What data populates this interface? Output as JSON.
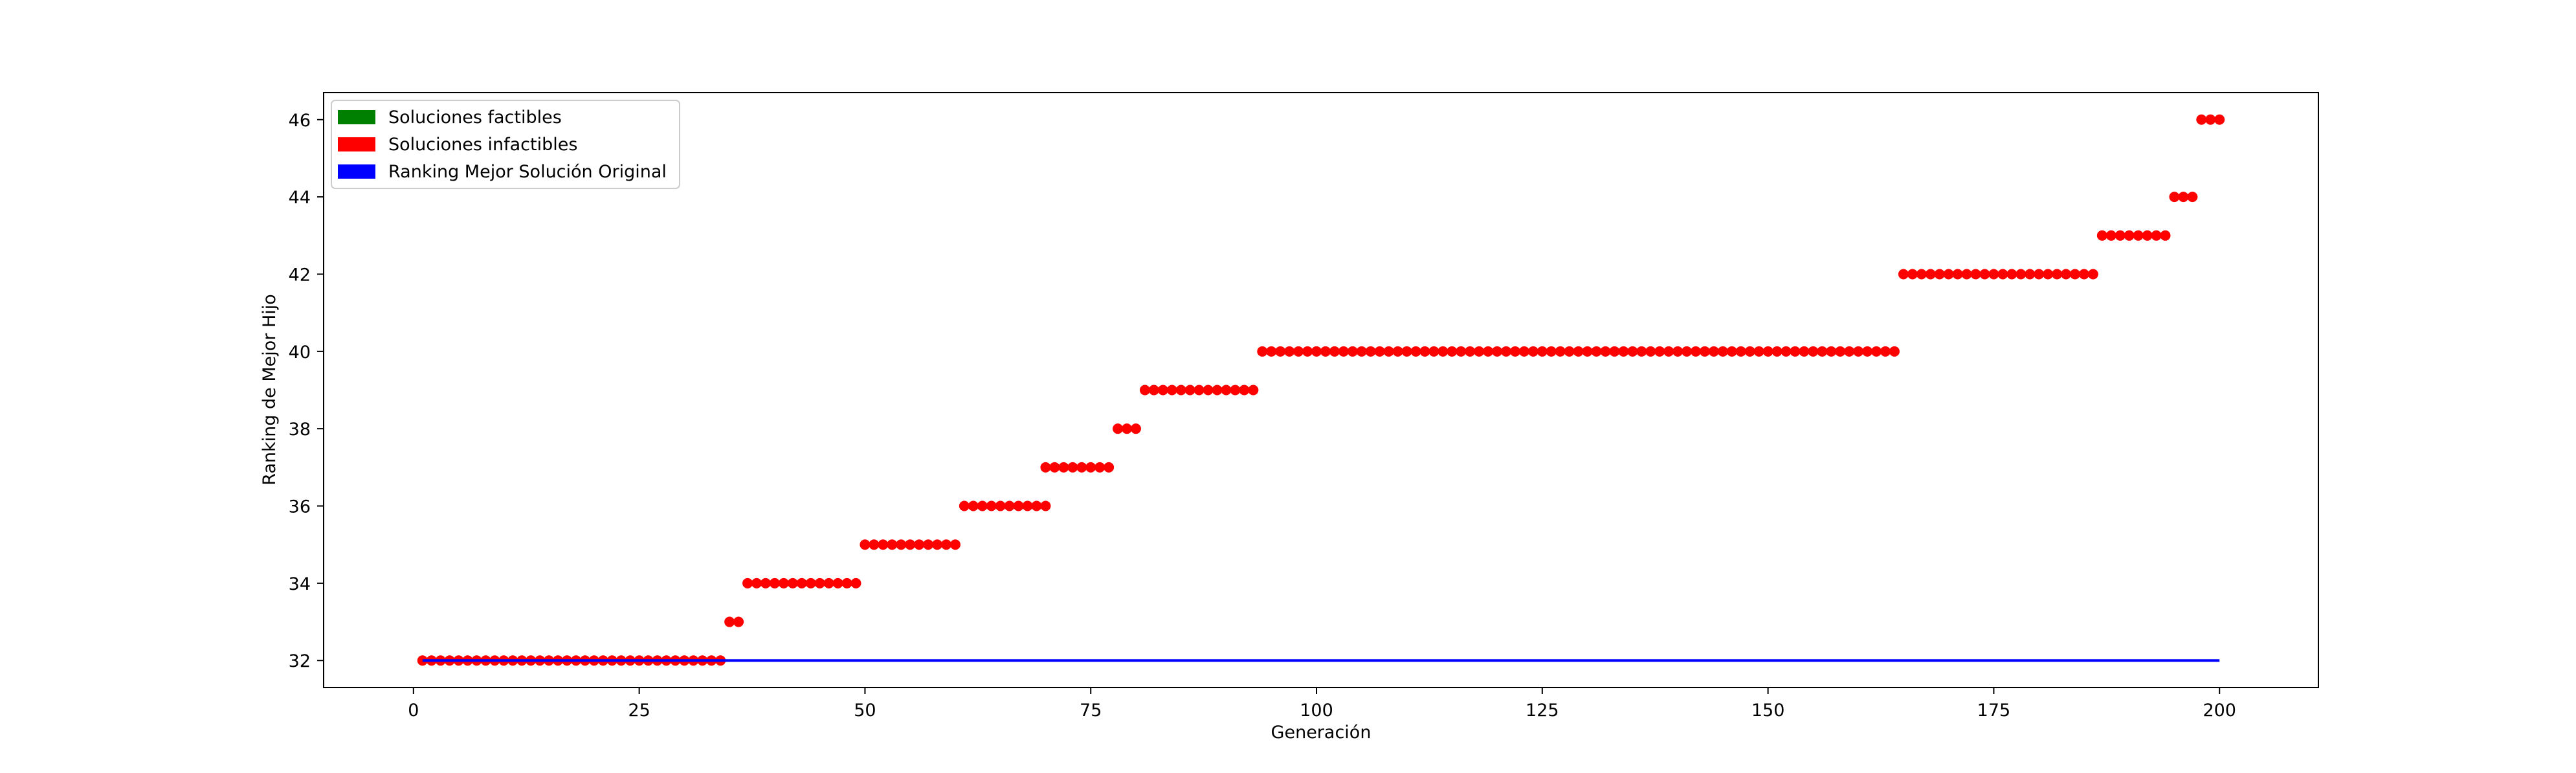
{
  "chart_data": {
    "type": "scatter",
    "xlabel": "Generación",
    "ylabel": "Ranking de Mejor Hijo",
    "xlim": [
      -9.95,
      210.95
    ],
    "ylim": [
      31.3,
      46.7
    ],
    "xticks": [
      0,
      25,
      50,
      75,
      100,
      125,
      150,
      175,
      200
    ],
    "yticks": [
      32,
      34,
      36,
      38,
      40,
      42,
      44,
      46
    ],
    "grid": false,
    "legend_position": "top-left",
    "legend": [
      {
        "label": "Soluciones factibles",
        "color": "#008000"
      },
      {
        "label": "Soluciones infactibles",
        "color": "#ff0000"
      },
      {
        "label": "Ranking Mejor Solución Original",
        "color": "#0000ff"
      }
    ],
    "series": [
      {
        "kind": "points",
        "color": "#ff0000",
        "segments": [
          {
            "x_from": 1,
            "x_to": 34,
            "y": 32
          },
          {
            "x_from": 35,
            "x_to": 36,
            "y": 33
          },
          {
            "x_from": 37,
            "x_to": 49,
            "y": 34
          },
          {
            "x_from": 50,
            "x_to": 60,
            "y": 35
          },
          {
            "x_from": 61,
            "x_to": 70,
            "y": 36
          },
          {
            "x_from": 70,
            "x_to": 77,
            "y": 37
          },
          {
            "x_from": 78,
            "x_to": 80,
            "y": 38
          },
          {
            "x_from": 81,
            "x_to": 93,
            "y": 39
          },
          {
            "x_from": 94,
            "x_to": 164,
            "y": 40
          },
          {
            "x_from": 165,
            "x_to": 186,
            "y": 42
          },
          {
            "x_from": 187,
            "x_to": 194,
            "y": 43
          },
          {
            "x_from": 195,
            "x_to": 197,
            "y": 44
          },
          {
            "x_from": 198,
            "x_to": 200,
            "y": 46
          }
        ]
      },
      {
        "kind": "line",
        "color": "#0000ff",
        "x": [
          1,
          200
        ],
        "y": [
          32,
          32
        ]
      }
    ]
  }
}
